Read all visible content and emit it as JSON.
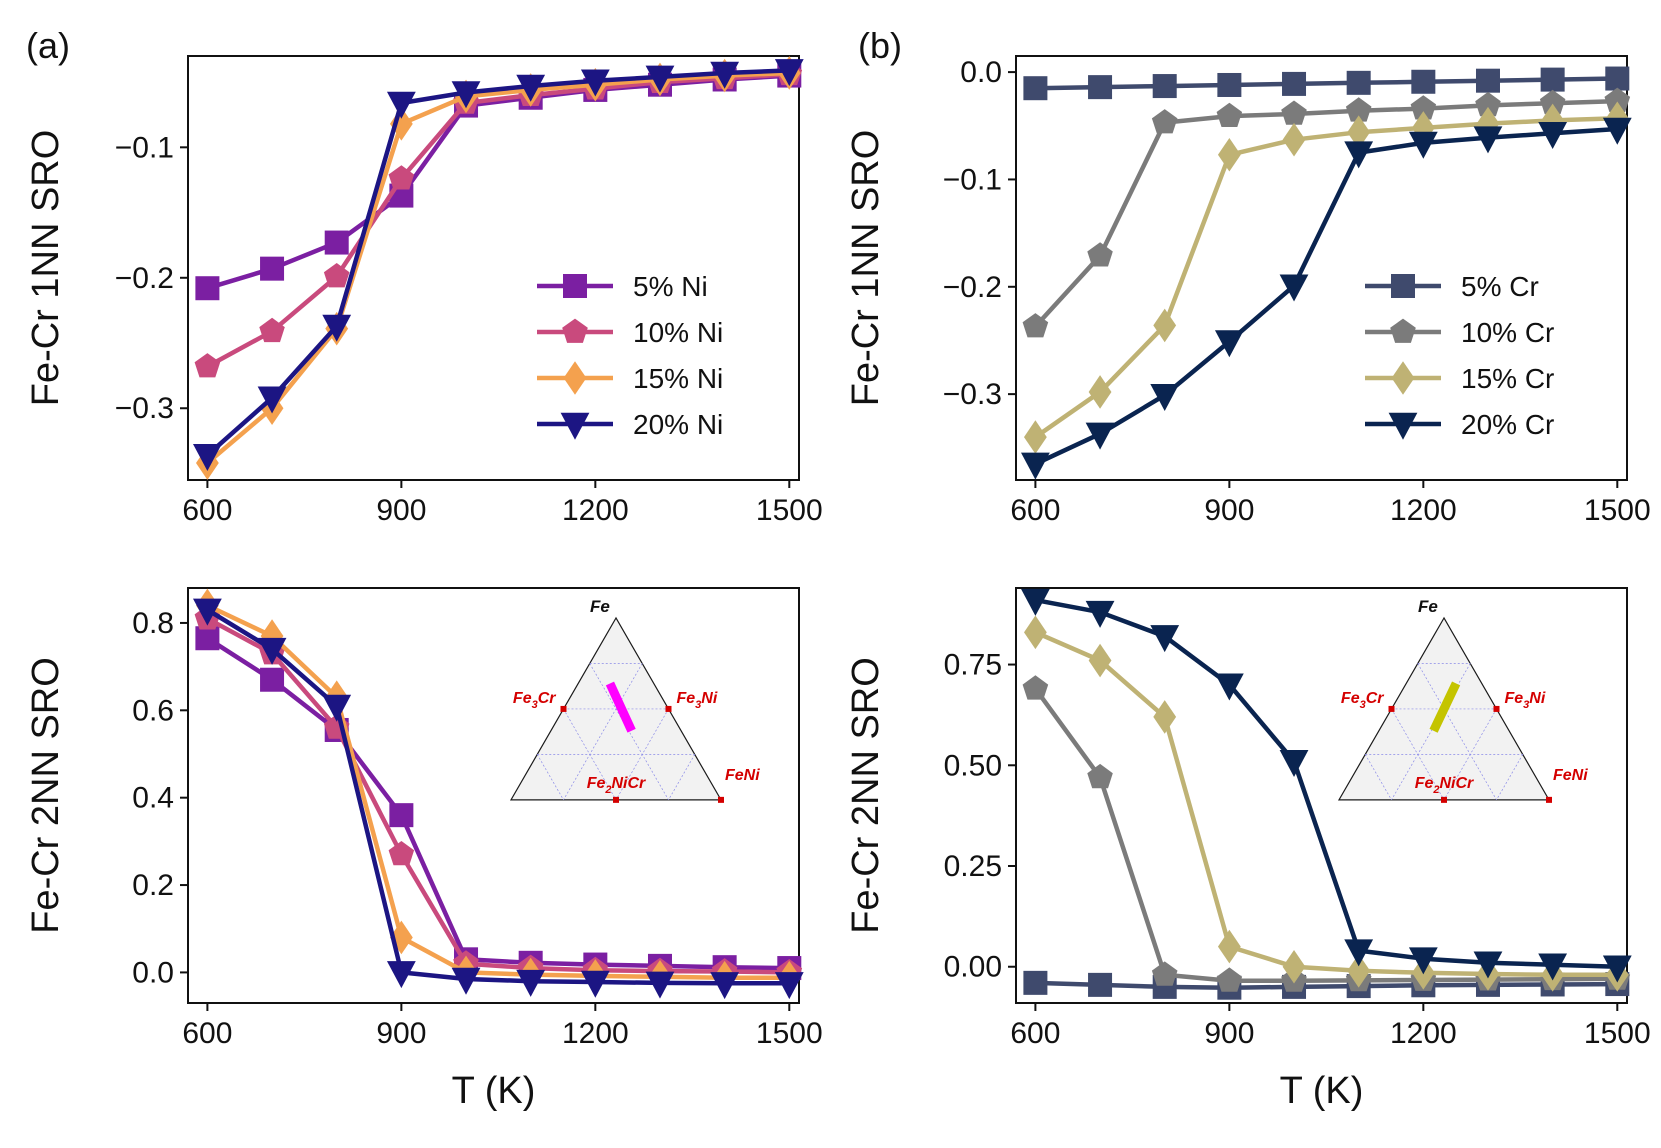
{
  "figure": {
    "panel_labels": [
      "(a)",
      "(b)"
    ],
    "xlabel": "T (K)"
  },
  "colors": {
    "ni_5": "#7b1fa2",
    "ni_10": "#c94a7d",
    "ni_15": "#f4a14e",
    "ni_20": "#1c1583",
    "cr_5": "#3f4a6d",
    "cr_10": "#7b7b7b",
    "cr_15": "#bfb274",
    "cr_20": "#0a2450",
    "ternary_line_a": "#ff00ff",
    "ternary_line_b": "#c4c400",
    "ternary_point": "#d40000"
  },
  "ternary": {
    "apex_label": "Fe",
    "labels": [
      "Fe3Cr",
      "Fe3Ni",
      "Fe2NiCr",
      "FeNi"
    ]
  },
  "chart_data": [
    {
      "id": "a_top",
      "type": "line",
      "panel": "(a)",
      "xlabel": "",
      "ylabel": "Fe-Cr 1NN SRO",
      "xlim": [
        570,
        1515
      ],
      "ylim": [
        -0.355,
        -0.03
      ],
      "xticks": [
        600,
        900,
        1200,
        1500
      ],
      "yticks": [
        -0.3,
        -0.2,
        -0.1
      ],
      "legend": "center-right",
      "x": [
        600,
        700,
        800,
        900,
        1000,
        1100,
        1200,
        1300,
        1400,
        1500
      ],
      "series": [
        {
          "name": "5% Ni",
          "color": "ni_5",
          "marker": "square",
          "values": [
            -0.208,
            -0.193,
            -0.173,
            -0.137,
            -0.068,
            -0.062,
            -0.056,
            -0.052,
            -0.048,
            -0.045
          ]
        },
        {
          "name": "10% Ni",
          "color": "ni_10",
          "marker": "pentagon",
          "values": [
            -0.268,
            -0.241,
            -0.199,
            -0.124,
            -0.066,
            -0.06,
            -0.055,
            -0.05,
            -0.047,
            -0.044
          ]
        },
        {
          "name": "15% Ni",
          "color": "ni_15",
          "marker": "diamond",
          "values": [
            -0.342,
            -0.3,
            -0.239,
            -0.082,
            -0.061,
            -0.056,
            -0.052,
            -0.048,
            -0.045,
            -0.043
          ]
        },
        {
          "name": "20% Ni",
          "color": "ni_20",
          "marker": "triangle-down",
          "values": [
            -0.336,
            -0.292,
            -0.237,
            -0.066,
            -0.058,
            -0.053,
            -0.049,
            -0.046,
            -0.043,
            -0.041
          ]
        }
      ]
    },
    {
      "id": "b_top",
      "type": "line",
      "panel": "(b)",
      "xlabel": "",
      "ylabel": "Fe-Cr 1NN SRO",
      "xlim": [
        570,
        1515
      ],
      "ylim": [
        -0.38,
        0.015
      ],
      "xticks": [
        600,
        900,
        1200,
        1500
      ],
      "yticks": [
        -0.3,
        -0.2,
        -0.1,
        0.0
      ],
      "ytick_labels": [
        "−0.3",
        "−0.2",
        "−0.1",
        "0.0"
      ],
      "legend": "center-right",
      "x": [
        600,
        700,
        800,
        900,
        1000,
        1100,
        1200,
        1300,
        1400,
        1500
      ],
      "series": [
        {
          "name": "5% Cr",
          "color": "cr_5",
          "marker": "square",
          "values": [
            -0.015,
            -0.014,
            -0.013,
            -0.012,
            -0.011,
            -0.01,
            -0.009,
            -0.008,
            -0.007,
            -0.006
          ]
        },
        {
          "name": "10% Cr",
          "color": "cr_10",
          "marker": "pentagon",
          "values": [
            -0.237,
            -0.171,
            -0.047,
            -0.041,
            -0.039,
            -0.036,
            -0.034,
            -0.031,
            -0.029,
            -0.027
          ]
        },
        {
          "name": "15% Cr",
          "color": "cr_15",
          "marker": "diamond",
          "values": [
            -0.34,
            -0.298,
            -0.236,
            -0.077,
            -0.063,
            -0.056,
            -0.052,
            -0.048,
            -0.045,
            -0.043
          ]
        },
        {
          "name": "20% Cr",
          "color": "cr_20",
          "marker": "triangle-down",
          "values": [
            -0.365,
            -0.337,
            -0.301,
            -0.251,
            -0.199,
            -0.075,
            -0.066,
            -0.061,
            -0.057,
            -0.053
          ]
        }
      ]
    },
    {
      "id": "a_bottom",
      "type": "line",
      "panel": "(a)",
      "xlabel": "T (K)",
      "ylabel": "Fe-Cr 2NN SRO",
      "xlim": [
        570,
        1515
      ],
      "ylim": [
        -0.07,
        0.88
      ],
      "xticks": [
        600,
        900,
        1200,
        1500
      ],
      "yticks": [
        0.0,
        0.2,
        0.4,
        0.6,
        0.8
      ],
      "legend": "",
      "x": [
        600,
        700,
        800,
        900,
        1000,
        1100,
        1200,
        1300,
        1400,
        1500
      ],
      "series": [
        {
          "name": "5% Ni",
          "color": "ni_5",
          "marker": "square",
          "values": [
            0.765,
            0.67,
            0.555,
            0.36,
            0.03,
            0.022,
            0.018,
            0.015,
            0.012,
            0.01
          ]
        },
        {
          "name": "10% Ni",
          "color": "ni_10",
          "marker": "pentagon",
          "values": [
            0.81,
            0.73,
            0.56,
            0.27,
            0.02,
            0.01,
            0.005,
            0.003,
            0.002,
            0.0
          ]
        },
        {
          "name": "15% Ni",
          "color": "ni_15",
          "marker": "diamond",
          "values": [
            0.84,
            0.77,
            0.63,
            0.08,
            0.0,
            -0.005,
            -0.008,
            -0.01,
            -0.012,
            -0.012
          ]
        },
        {
          "name": "20% Ni",
          "color": "ni_20",
          "marker": "triangle-down",
          "values": [
            0.83,
            0.74,
            0.61,
            0.0,
            -0.015,
            -0.02,
            -0.022,
            -0.024,
            -0.025,
            -0.025
          ]
        }
      ]
    },
    {
      "id": "b_bottom",
      "type": "line",
      "panel": "(b)",
      "xlabel": "T (K)",
      "ylabel": "Fe-Cr 2NN SRO",
      "xlim": [
        570,
        1515
      ],
      "ylim": [
        -0.09,
        0.94
      ],
      "xticks": [
        600,
        900,
        1200,
        1500
      ],
      "yticks": [
        0.0,
        0.25,
        0.5,
        0.75
      ],
      "ytick_labels": [
        "0.00",
        "0.25",
        "0.50",
        "0.75"
      ],
      "legend": "",
      "x": [
        600,
        700,
        800,
        900,
        1000,
        1100,
        1200,
        1300,
        1400,
        1500
      ],
      "series": [
        {
          "name": "5% Cr",
          "color": "cr_5",
          "marker": "square",
          "values": [
            -0.04,
            -0.045,
            -0.05,
            -0.052,
            -0.05,
            -0.048,
            -0.046,
            -0.045,
            -0.044,
            -0.043
          ]
        },
        {
          "name": "10% Cr",
          "color": "cr_10",
          "marker": "pentagon",
          "values": [
            0.69,
            0.47,
            -0.02,
            -0.035,
            -0.035,
            -0.034,
            -0.033,
            -0.032,
            -0.031,
            -0.03
          ]
        },
        {
          "name": "15% Cr",
          "color": "cr_15",
          "marker": "diamond",
          "values": [
            0.83,
            0.76,
            0.62,
            0.05,
            0.0,
            -0.01,
            -0.015,
            -0.018,
            -0.02,
            -0.02
          ]
        },
        {
          "name": "20% Cr",
          "color": "cr_20",
          "marker": "triangle-down",
          "values": [
            0.91,
            0.88,
            0.82,
            0.7,
            0.51,
            0.04,
            0.02,
            0.01,
            0.005,
            0.0
          ]
        }
      ]
    }
  ]
}
